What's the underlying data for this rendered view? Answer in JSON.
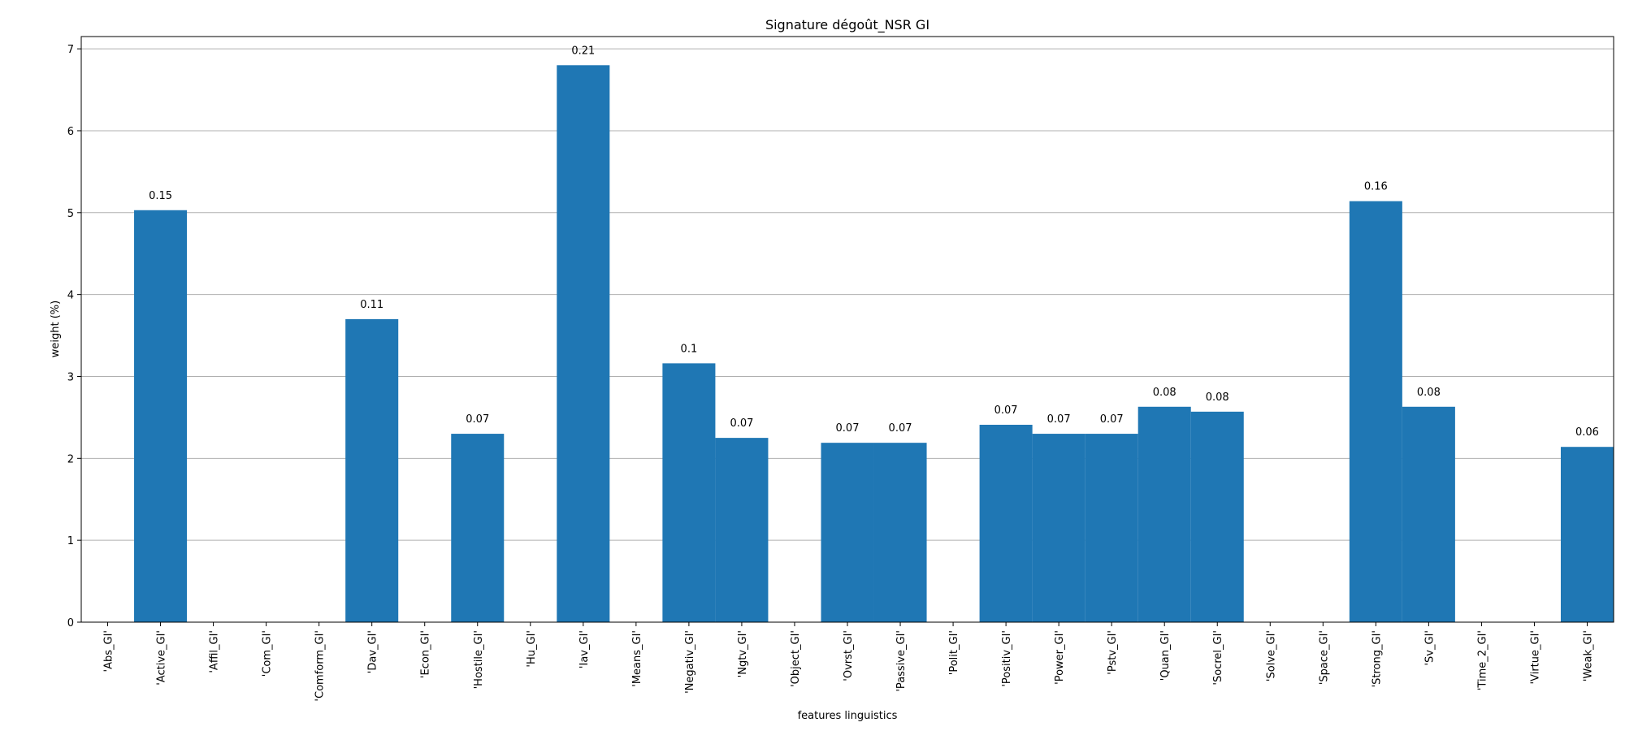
{
  "chart_data": {
    "type": "bar",
    "title": "Signature dégoût_NSR GI",
    "xlabel": "features linguistics",
    "ylabel": "weight (%)",
    "ylim": [
      0,
      7.15
    ],
    "yticks": [
      0,
      1,
      2,
      3,
      4,
      5,
      6,
      7
    ],
    "grid": "y",
    "bar_color": "#1f77b4",
    "categories": [
      "'Abs_GI'",
      "'Active_GI'",
      "'Affil_GI'",
      "'Com_GI'",
      "'Comform_GI'",
      "'Dav_GI'",
      "'Econ_GI'",
      "'Hostile_GI'",
      "'Hu_GI'",
      "'Iav_GI'",
      "'Means_GI'",
      "'Negativ_GI'",
      "'Ngtv_GI'",
      "'Object_GI'",
      "'Ovrst_GI'",
      "'Passive_GI'",
      "'Polit_GI'",
      "'Positiv_GI'",
      "'Power_GI'",
      "'Pstv_GI'",
      "'Quan_GI'",
      "'Socrel_GI'",
      "'Solve_GI'",
      "'Space_GI'",
      "'Strong_GI'",
      "'Sv_GI'",
      "'Time_2_GI'",
      "'Virtue_GI'",
      "'Weak_GI'"
    ],
    "values": [
      0,
      5.03,
      0,
      0,
      0,
      3.7,
      0,
      2.3,
      0,
      6.8,
      0,
      3.16,
      2.25,
      0,
      2.19,
      2.19,
      0,
      2.41,
      2.3,
      2.3,
      2.63,
      2.57,
      0,
      0,
      5.14,
      2.63,
      0,
      0,
      2.14
    ],
    "labels": [
      "",
      "0.15",
      "",
      "",
      "",
      "0.11",
      "",
      "0.07",
      "",
      "0.21",
      "",
      "0.1",
      "0.07",
      "",
      "0.07",
      "0.07",
      "",
      "0.07",
      "0.07",
      "0.07",
      "0.08",
      "0.08",
      "",
      "",
      "0.16",
      "0.08",
      "",
      "",
      "0.06"
    ]
  }
}
